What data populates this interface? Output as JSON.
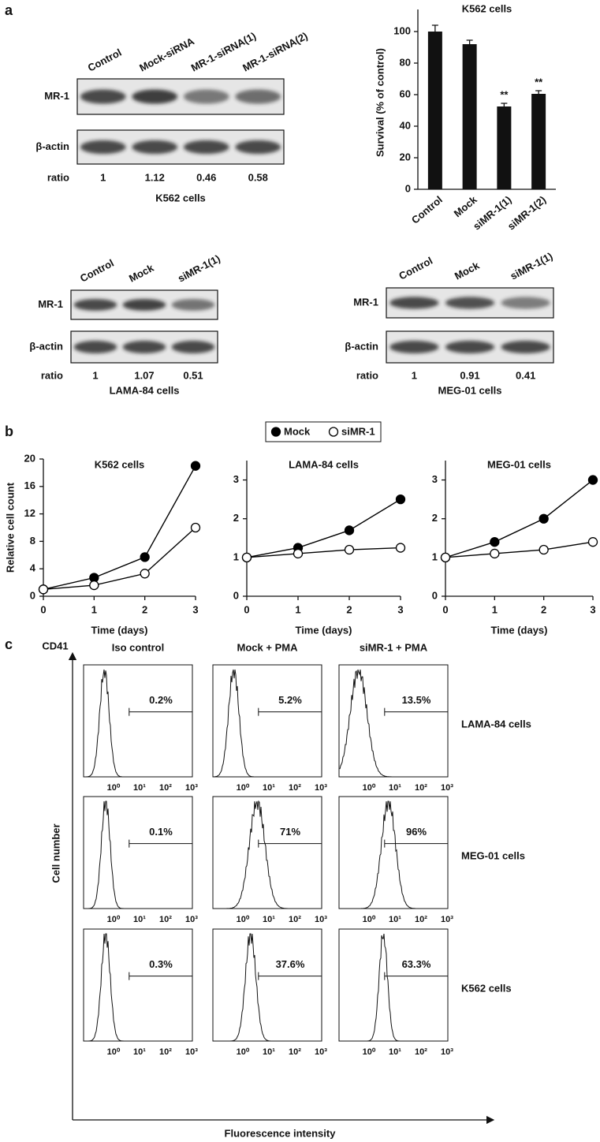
{
  "panels": [
    "a",
    "b",
    "c"
  ],
  "blots": [
    {
      "lanes": [
        "Control",
        "Mock-siRNA",
        "MR-1-siRNA(1)",
        "MR-1-siRNA(2)"
      ],
      "rows": [
        "MR-1",
        "β-actin"
      ],
      "ratio_label": "ratio",
      "ratios": [
        1,
        1.12,
        0.46,
        0.58
      ],
      "caption": "K562 cells"
    },
    {
      "lanes": [
        "Control",
        "Mock",
        "siMR-1(1)"
      ],
      "rows": [
        "MR-1",
        "β-actin"
      ],
      "ratio_label": "ratio",
      "ratios": [
        1,
        1.07,
        0.51
      ],
      "caption": "LAMA-84 cells"
    },
    {
      "lanes": [
        "Control",
        "Mock",
        "siMR-1(1)"
      ],
      "rows": [
        "MR-1",
        "β-actin"
      ],
      "ratio_label": "ratio",
      "ratios": [
        1,
        0.91,
        0.41
      ],
      "caption": "MEG-01 cells"
    }
  ],
  "chart_data": [
    {
      "type": "bar",
      "title": "K562 cells",
      "ylabel": "Survival (% of control)",
      "categories": [
        "Control",
        "Mock",
        "siMR-1(1)",
        "siMR-1(2)"
      ],
      "values": [
        100,
        92,
        52.5,
        60.5
      ],
      "errors": [
        4,
        2.5,
        2,
        2
      ],
      "color": "#111111",
      "ylim": [
        0,
        110
      ],
      "yticks": [
        0,
        20,
        40,
        60,
        80,
        100
      ],
      "annotations": [
        {
          "category": "siMR-1(1)",
          "text": "**"
        },
        {
          "category": "siMR-1(2)",
          "text": "**"
        }
      ]
    },
    {
      "type": "line",
      "title": "K562 cells",
      "ylabel": "Relative cell count",
      "xlabel": "Time (days)",
      "x": [
        0,
        1,
        2,
        3
      ],
      "series": [
        {
          "name": "Mock",
          "color": "#000000",
          "marker": "filled",
          "values": [
            1,
            2.7,
            5.7,
            19
          ]
        },
        {
          "name": "siMR-1",
          "color": "#000000",
          "marker": "open",
          "values": [
            1,
            1.6,
            3.3,
            10
          ]
        }
      ],
      "xlim": [
        0,
        3
      ],
      "xticks": [
        0,
        1,
        2,
        3
      ],
      "ylim": [
        0,
        20
      ],
      "yticks": [
        0,
        4,
        8,
        12,
        16,
        20
      ]
    },
    {
      "type": "line",
      "title": "LAMA-84 cells",
      "xlabel": "Time (days)",
      "x": [
        0,
        1,
        2,
        3
      ],
      "series": [
        {
          "color": "#000000",
          "marker": "filled",
          "values": [
            1,
            1.25,
            1.7,
            2.5
          ]
        },
        {
          "color": "#000000",
          "marker": "open",
          "values": [
            1,
            1.1,
            1.2,
            1.25
          ]
        }
      ],
      "xlim": [
        0,
        3
      ],
      "xticks": [
        0,
        1,
        2,
        3
      ],
      "ylim": [
        0,
        3.5
      ],
      "yticks": [
        0,
        1,
        2,
        3
      ]
    },
    {
      "type": "line",
      "title": "MEG-01 cells",
      "xlabel": "Time (days)",
      "x": [
        0,
        1,
        2,
        3
      ],
      "series": [
        {
          "color": "#000000",
          "marker": "filled",
          "values": [
            1,
            1.4,
            2,
            3
          ]
        },
        {
          "color": "#000000",
          "marker": "open",
          "values": [
            1,
            1.1,
            1.2,
            1.4
          ]
        }
      ],
      "xlim": [
        0,
        3
      ],
      "xticks": [
        0,
        1,
        2,
        3
      ],
      "ylim": [
        0,
        3.5
      ],
      "yticks": [
        0,
        1,
        2,
        3
      ]
    }
  ],
  "flow": {
    "y_axis_title": "CD41",
    "y_label": "Cell number",
    "x_label": "Fluorescence intensity",
    "columns": [
      "Iso control",
      "Mock + PMA",
      "siMR-1 + PMA"
    ],
    "rows": [
      {
        "label": "LAMA-84 cells",
        "percents": [
          "0.2%",
          "5.2%",
          "13.5%"
        ]
      },
      {
        "label": "MEG-01 cells",
        "percents": [
          "0.1%",
          "71%",
          "96%"
        ]
      },
      {
        "label": "K562 cells",
        "percents": [
          "0.3%",
          "37.6%",
          "63.3%"
        ]
      }
    ],
    "xticks": [
      "10⁰",
      "10¹",
      "10²",
      "10³"
    ]
  }
}
